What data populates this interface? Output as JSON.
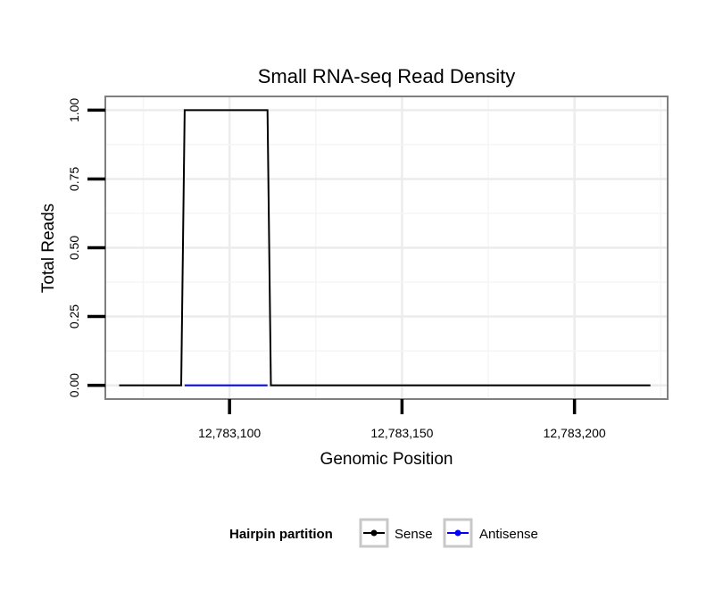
{
  "chart_data": {
    "type": "line",
    "title": "Small RNA-seq Read Density",
    "xlabel": "Genomic Position",
    "ylabel": "Total Reads",
    "xlim": [
      12783064,
      12783227
    ],
    "ylim": [
      -0.05,
      1.05
    ],
    "x_ticks": [
      {
        "value": 12783100,
        "label": "12,783,100"
      },
      {
        "value": 12783150,
        "label": "12,783,150"
      },
      {
        "value": 12783200,
        "label": "12,783,200"
      }
    ],
    "y_ticks": [
      {
        "value": 0.0,
        "label": "0.00"
      },
      {
        "value": 0.25,
        "label": "0.25"
      },
      {
        "value": 0.5,
        "label": "0.50"
      },
      {
        "value": 0.75,
        "label": "0.75"
      },
      {
        "value": 1.0,
        "label": "1.00"
      }
    ],
    "grid": true,
    "legend": {
      "title": "Hairpin partition",
      "position": "bottom"
    },
    "series": [
      {
        "name": "Sense",
        "color": "#000000",
        "x": [
          12783068,
          12783086,
          12783087,
          12783111,
          12783112,
          12783222
        ],
        "y": [
          0,
          0,
          1,
          1,
          0,
          0
        ]
      },
      {
        "name": "Antisense",
        "color": "#0000ff",
        "x": [
          12783087,
          12783111
        ],
        "y": [
          0,
          0
        ]
      }
    ]
  }
}
